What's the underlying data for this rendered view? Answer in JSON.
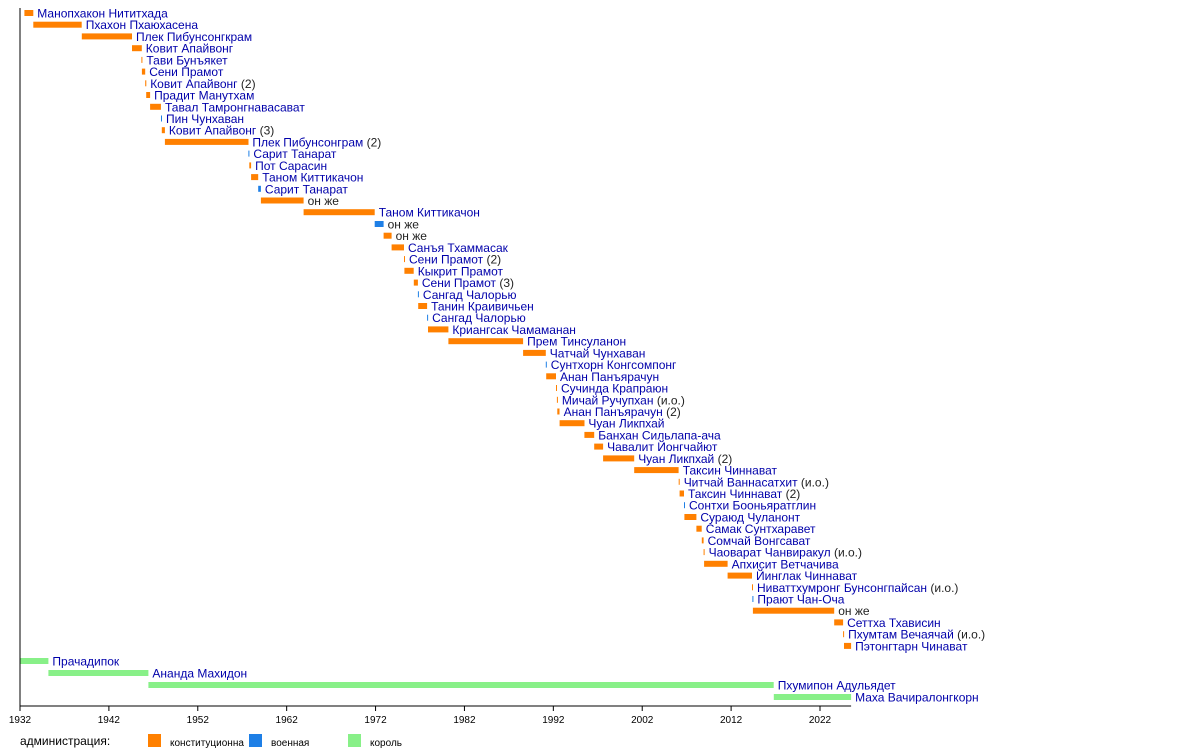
{
  "chart_data": {
    "type": "timeline",
    "title": "",
    "xlabel": "",
    "ylabel": "",
    "xlim": [
      1932,
      2025.5
    ],
    "x_ticks": [
      1932,
      1942,
      1952,
      1962,
      1972,
      1982,
      1992,
      2002,
      2012,
      2022
    ],
    "grid": false,
    "legend": {
      "position": "bottom-left",
      "title": "администрация:",
      "entries": [
        {
          "key": "constitutional",
          "label": "конституционна",
          "color": "#ff8000"
        },
        {
          "key": "military",
          "label": "военная",
          "color": "#1e7fe6"
        },
        {
          "key": "king",
          "label": "король",
          "color": "#88f088"
        }
      ]
    },
    "prime_ministers": [
      {
        "name": "Манопхакон Нититхада",
        "note": "",
        "start": 1932.5,
        "end": 1933.5,
        "type": "constitutional"
      },
      {
        "name": "Пхахон Пхаюхасена",
        "note": "",
        "start": 1933.5,
        "end": 1938.95,
        "type": "constitutional"
      },
      {
        "name": "Плек Пибунсонгкрам",
        "note": "",
        "start": 1938.95,
        "end": 1944.6,
        "type": "constitutional"
      },
      {
        "name": "Ковит Апайвонг",
        "note": "",
        "start": 1944.6,
        "end": 1945.7,
        "type": "constitutional"
      },
      {
        "name": "Тави Бунъякет",
        "note": "",
        "start": 1945.66,
        "end": 1945.71,
        "type": "constitutional"
      },
      {
        "name": "Сени Прамот",
        "note": "",
        "start": 1945.71,
        "end": 1946.08,
        "type": "constitutional"
      },
      {
        "name": "Ковит Апайвонг",
        "note": "(2)",
        "start": 1946.08,
        "end": 1946.2,
        "type": "constitutional"
      },
      {
        "name": "Прадит Манутхам",
        "note": "",
        "start": 1946.2,
        "end": 1946.64,
        "type": "constitutional"
      },
      {
        "name": "Тавал Тамронгнавасават",
        "note": "",
        "start": 1946.64,
        "end": 1947.86,
        "type": "constitutional"
      },
      {
        "name": "Пин Чунхаван",
        "note": "",
        "start": 1947.86,
        "end": 1947.95,
        "type": "military"
      },
      {
        "name": "Ковит Апайвонг",
        "note": "(3)",
        "start": 1947.95,
        "end": 1948.3,
        "type": "constitutional"
      },
      {
        "name": "Плек Пибунсонграм",
        "note": "(2)",
        "start": 1948.3,
        "end": 1957.7,
        "type": "constitutional"
      },
      {
        "name": "Сарит Танарат",
        "note": "",
        "start": 1957.7,
        "end": 1957.8,
        "type": "military"
      },
      {
        "name": "Пот Сарасин",
        "note": "",
        "start": 1957.8,
        "end": 1958.0,
        "type": "constitutional"
      },
      {
        "name": "Таном Киттикачон",
        "note": "",
        "start": 1958.0,
        "end": 1958.8,
        "type": "constitutional"
      },
      {
        "name": "Сарит Танарат",
        "note": "",
        "start": 1958.8,
        "end": 1959.1,
        "type": "military"
      },
      {
        "name": "он же",
        "note": "",
        "start": 1959.1,
        "end": 1963.9,
        "type": "constitutional"
      },
      {
        "name": "Таном Киттикачон",
        "note": "",
        "start": 1963.9,
        "end": 1971.9,
        "type": "constitutional"
      },
      {
        "name": "он же",
        "note": "",
        "start": 1971.9,
        "end": 1972.9,
        "type": "military"
      },
      {
        "name": "он же",
        "note": "",
        "start": 1972.9,
        "end": 1973.8,
        "type": "constitutional"
      },
      {
        "name": "Санъя Тхаммасак",
        "note": "",
        "start": 1973.8,
        "end": 1975.2,
        "type": "constitutional"
      },
      {
        "name": "Сени Прамот",
        "note": "(2)",
        "start": 1975.2,
        "end": 1975.25,
        "type": "constitutional"
      },
      {
        "name": "Кыкрит Прамот",
        "note": "",
        "start": 1975.25,
        "end": 1976.3,
        "type": "constitutional"
      },
      {
        "name": "Сени Прамот",
        "note": "(3)",
        "start": 1976.3,
        "end": 1976.76,
        "type": "constitutional"
      },
      {
        "name": "Сангад Чалорью",
        "note": "",
        "start": 1976.76,
        "end": 1976.8,
        "type": "military"
      },
      {
        "name": "Танин Краивичьен",
        "note": "",
        "start": 1976.8,
        "end": 1977.8,
        "type": "constitutional"
      },
      {
        "name": "Сангад Чалорью",
        "note": "",
        "start": 1977.8,
        "end": 1977.9,
        "type": "military"
      },
      {
        "name": "Криангсак Чамаманан",
        "note": "",
        "start": 1977.9,
        "end": 1980.2,
        "type": "constitutional"
      },
      {
        "name": "Прем Тинсуланон",
        "note": "",
        "start": 1980.2,
        "end": 1988.6,
        "type": "constitutional"
      },
      {
        "name": "Чатчай Чунхаван",
        "note": "",
        "start": 1988.6,
        "end": 1991.15,
        "type": "constitutional"
      },
      {
        "name": "Сунтхорн Конгсомпонг",
        "note": "",
        "start": 1991.15,
        "end": 1991.2,
        "type": "military"
      },
      {
        "name": "Анан Панъярачун",
        "note": "",
        "start": 1991.2,
        "end": 1992.3,
        "type": "constitutional"
      },
      {
        "name": "Сучинда Крапраюн",
        "note": "",
        "start": 1992.3,
        "end": 1992.4,
        "type": "constitutional"
      },
      {
        "name": "Мичай Ручупхан",
        "note": "(и.о.)",
        "start": 1992.4,
        "end": 1992.45,
        "type": "constitutional"
      },
      {
        "name": "Анан Панъярачун",
        "note": "(2)",
        "start": 1992.45,
        "end": 1992.7,
        "type": "constitutional"
      },
      {
        "name": "Чуан Ликпхай",
        "note": "",
        "start": 1992.7,
        "end": 1995.5,
        "type": "constitutional"
      },
      {
        "name": "Банхан Сильлапа-ача",
        "note": "",
        "start": 1995.5,
        "end": 1996.6,
        "type": "constitutional"
      },
      {
        "name": "Чавалит Йонгчайют",
        "note": "",
        "start": 1996.6,
        "end": 1997.6,
        "type": "constitutional"
      },
      {
        "name": "Чуан Ликпхай",
        "note": "(2)",
        "start": 1997.6,
        "end": 2001.1,
        "type": "constitutional"
      },
      {
        "name": "Таксин Чиннават",
        "note": "",
        "start": 2001.1,
        "end": 2006.1,
        "type": "constitutional"
      },
      {
        "name": "Читчай Ваннасатхит",
        "note": "(и.о.)",
        "start": 2006.1,
        "end": 2006.2,
        "type": "constitutional"
      },
      {
        "name": "Таксин Чиннават",
        "note": "(2)",
        "start": 2006.2,
        "end": 2006.7,
        "type": "constitutional"
      },
      {
        "name": "Сонтхи Бооньяратглин",
        "note": "",
        "start": 2006.7,
        "end": 2006.75,
        "type": "military"
      },
      {
        "name": "Сураюд Чуланонт",
        "note": "",
        "start": 2006.75,
        "end": 2008.1,
        "type": "constitutional"
      },
      {
        "name": "Самак Сунтхаравет",
        "note": "",
        "start": 2008.1,
        "end": 2008.7,
        "type": "constitutional"
      },
      {
        "name": "Сомчай Вонгсават",
        "note": "",
        "start": 2008.7,
        "end": 2008.9,
        "type": "constitutional"
      },
      {
        "name": "Чаоварат Чанвиракул",
        "note": "(и.о.)",
        "start": 2008.9,
        "end": 2008.96,
        "type": "constitutional"
      },
      {
        "name": "Апхисит Ветчачива",
        "note": "",
        "start": 2008.96,
        "end": 2011.6,
        "type": "constitutional"
      },
      {
        "name": "Йинглак Чиннават",
        "note": "",
        "start": 2011.6,
        "end": 2014.35,
        "type": "constitutional"
      },
      {
        "name": "Ниваттхумронг Бунсонгпайсан",
        "note": "(и.о.)",
        "start": 2014.35,
        "end": 2014.4,
        "type": "constitutional"
      },
      {
        "name": "Прают Чан-Оча",
        "note": "",
        "start": 2014.4,
        "end": 2014.45,
        "type": "military"
      },
      {
        "name": "он же",
        "note": "",
        "start": 2014.45,
        "end": 2023.6,
        "type": "constitutional"
      },
      {
        "name": "Сеттха Тхависин",
        "note": "",
        "start": 2023.6,
        "end": 2024.6,
        "type": "constitutional"
      },
      {
        "name": "Пхумтам Вечаячай",
        "note": "(и.о.)",
        "start": 2024.6,
        "end": 2024.7,
        "type": "constitutional"
      },
      {
        "name": "Пэтонгтарн Чинават",
        "note": "",
        "start": 2024.7,
        "end": 2025.5,
        "type": "constitutional"
      }
    ],
    "kings": [
      {
        "name": "Прачадипок",
        "start": 1932,
        "end": 1935.2,
        "type": "king"
      },
      {
        "name": "Ананда Махидон",
        "start": 1935.2,
        "end": 1946.45,
        "type": "king"
      },
      {
        "name": "Пхумипон Адульядет",
        "start": 1946.45,
        "end": 2016.8,
        "type": "king"
      },
      {
        "name": "Маха Вачиралонгкорн",
        "start": 2016.8,
        "end": 2025.5,
        "type": "king"
      }
    ]
  }
}
